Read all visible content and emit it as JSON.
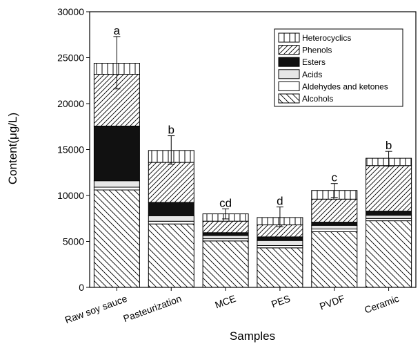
{
  "chart_data": {
    "type": "bar",
    "stacked": true,
    "xlabel": "Samples",
    "ylabel": "Content(μg/L)",
    "ylim": [
      0,
      30000
    ],
    "yticks": [
      0,
      5000,
      10000,
      15000,
      20000,
      25000,
      30000
    ],
    "categories": [
      "Raw soy sauce",
      "Pasteurization",
      "MCE",
      "PES",
      "PVDF",
      "Ceramic"
    ],
    "series": [
      {
        "name": "Alcohols",
        "pattern": "diag-back",
        "values": [
          10600,
          6900,
          5050,
          4300,
          6050,
          7250
        ]
      },
      {
        "name": "Aldehydes and ketones",
        "pattern": "white",
        "values": [
          300,
          300,
          250,
          250,
          300,
          250
        ]
      },
      {
        "name": "Acids",
        "pattern": "light-gray",
        "values": [
          700,
          600,
          350,
          550,
          400,
          350
        ]
      },
      {
        "name": "Esters",
        "pattern": "black",
        "values": [
          5950,
          1450,
          300,
          400,
          350,
          450
        ]
      },
      {
        "name": "Phenols",
        "pattern": "diag-forward",
        "values": [
          5650,
          4350,
          1250,
          1300,
          2500,
          4950
        ]
      },
      {
        "name": "Heterocyclics",
        "pattern": "vertical",
        "values": [
          1200,
          1300,
          800,
          800,
          950,
          800
        ]
      }
    ],
    "totals": [
      24400,
      14900,
      8000,
      7600,
      10550,
      14050
    ],
    "error_plus": [
      2900,
      1600,
      550,
      1150,
      750,
      750
    ],
    "error_minus": [
      2800,
      1500,
      550,
      1000,
      750,
      850
    ],
    "significance": [
      "a",
      "b",
      "cd",
      "d",
      "c",
      "b"
    ],
    "legend_position": "top-right",
    "legend_order": [
      "Heterocyclics",
      "Phenols",
      "Esters",
      "Acids",
      "Aldehydes and ketones",
      "Alcohols"
    ]
  }
}
